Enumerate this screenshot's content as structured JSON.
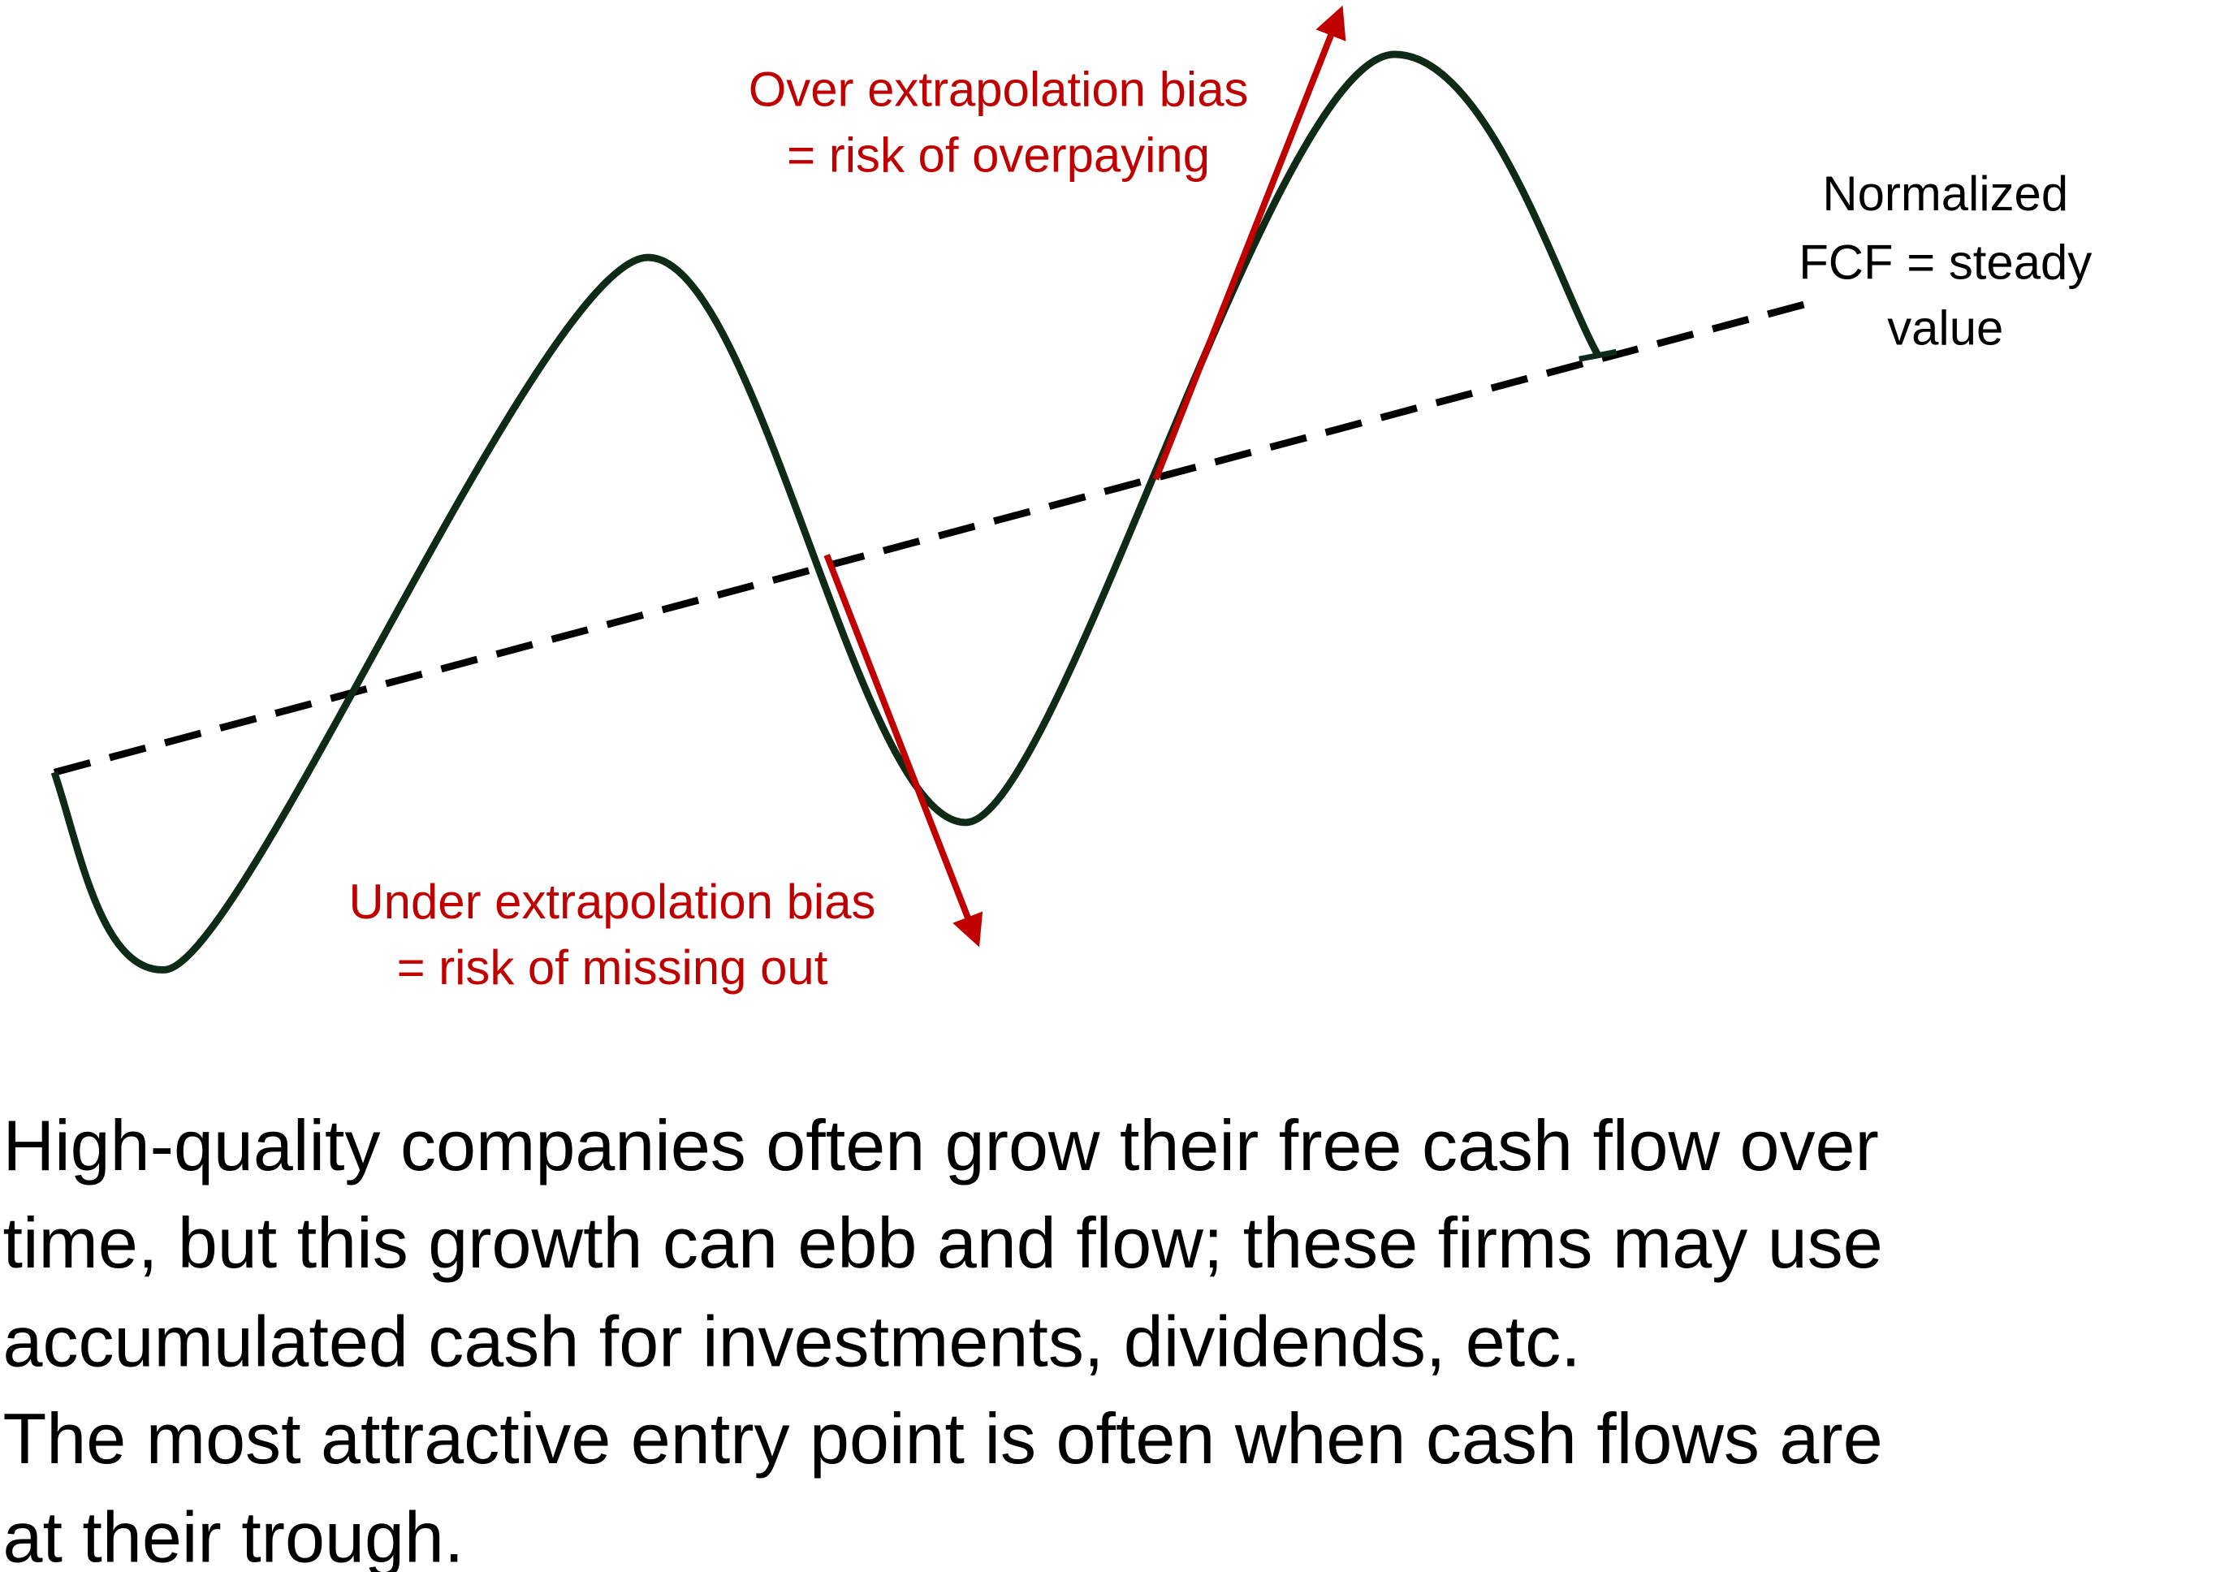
{
  "diagram": {
    "over_label": [
      "Over extrapolation bias",
      "= risk of overpaying"
    ],
    "under_label": [
      "Under extrapolation bias",
      "= risk of missing out"
    ],
    "normalized_label": [
      "Normalized",
      "FCF = steady",
      "value"
    ],
    "caption": [
      "High-quality companies often grow their free cash flow over",
      "time, but this growth can ebb and flow; these firms may use",
      "accumulated cash for investments, dividends, etc.",
      "The most attractive entry point is often when cash flows are",
      "at their trough."
    ]
  }
}
